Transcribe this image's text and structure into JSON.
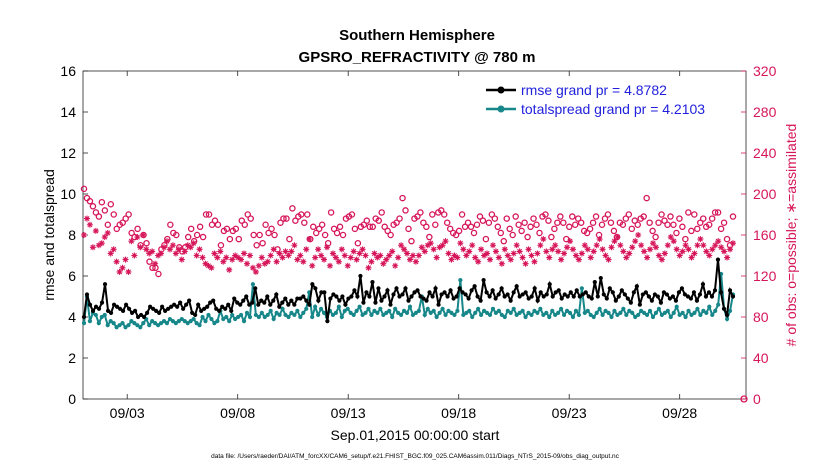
{
  "chart_data": {
    "type": "line",
    "title": "Southern Hemisphere",
    "subtitle": "GPSRO_REFRACTIVITY @ 780 m",
    "xlabel": "Sep.01,2015 00:00:00 start",
    "ylabel_left": "rmse and totalspread",
    "ylabel_right": "# of obs: o=possible; ∗=assimilated",
    "footnote": "data file: /Users/raeder/DAI/ATM_forcXX/CAM6_setup/f.e21.FHIST_BGC.f09_025.CAM6assim.011/Diags_NTrS_2015-09/obs_diag_output.nc",
    "x_tick_labels": [
      "09/03",
      "09/08",
      "09/13",
      "09/18",
      "09/23",
      "09/28"
    ],
    "x_tick_days": [
      3,
      8,
      13,
      18,
      23,
      28
    ],
    "x_range_days": [
      1,
      31
    ],
    "y_left_range": [
      0,
      16
    ],
    "y_left_ticks": [
      "0",
      "2",
      "4",
      "6",
      "8",
      "10",
      "12",
      "14",
      "16"
    ],
    "y_right_range": [
      0,
      320
    ],
    "y_right_ticks": [
      "0",
      "40",
      "80",
      "120",
      "160",
      "200",
      "240",
      "280",
      "320"
    ],
    "legend_location": "top-right",
    "colors": {
      "rmse": "#000000",
      "spread": "#17878a",
      "obs": "#d6165a",
      "legend_text": "#1f1fdc"
    },
    "series": [
      {
        "name": "rmse grand pr = 4.8782",
        "axis": "left",
        "values": [
          4.0,
          5.1,
          4.6,
          4.3,
          4.5,
          4.4,
          4.7,
          5.6,
          4.3,
          4.2,
          4.6,
          4.5,
          4.4,
          4.3,
          4.6,
          4.4,
          4.2,
          4.3,
          4.0,
          4.1,
          4.0,
          4.2,
          4.5,
          4.4,
          4.3,
          4.2,
          4.5,
          4.3,
          4.4,
          4.5,
          4.6,
          4.5,
          4.7,
          4.4,
          4.6,
          4.8,
          4.2,
          4.1,
          4.6,
          4.3,
          4.4,
          4.5,
          4.7,
          4.8,
          4.4,
          4.3,
          4.5,
          4.4,
          4.6,
          4.3,
          4.9,
          4.7,
          4.6,
          4.8,
          5.0,
          4.6,
          4.7,
          5.4,
          4.6,
          4.8,
          4.7,
          5.0,
          4.6,
          4.8,
          5.1,
          4.5,
          4.7,
          4.9,
          4.6,
          4.8,
          4.6,
          4.9,
          4.9,
          5.0,
          4.8,
          4.6,
          5.6,
          5.4,
          4.8,
          5.2,
          5.2,
          3.8,
          4.9,
          5.1,
          5.0,
          4.8,
          5.0,
          4.6,
          4.9,
          5.0,
          5.3,
          5.0,
          6.0,
          4.7,
          5.2,
          5.0,
          5.7,
          4.7,
          5.4,
          4.8,
          5.0,
          5.3,
          4.6,
          5.1,
          5.4,
          5.0,
          5.1,
          5.4,
          4.8,
          5.0,
          5.2,
          5.3,
          5.0,
          4.9,
          4.8,
          5.2,
          5.0,
          5.4,
          4.6,
          5.1,
          5.2,
          5.0,
          5.3,
          4.9,
          5.0,
          5.4,
          5.2,
          5.1,
          4.9,
          5.3,
          5.5,
          5.0,
          4.8,
          5.8,
          5.2,
          5.0,
          5.3,
          4.9,
          5.1,
          5.4,
          5.0,
          5.1,
          4.8,
          5.2,
          5.5,
          5.0,
          5.1,
          5.2,
          4.9,
          5.0,
          5.4,
          4.8,
          5.2,
          5.0,
          5.1,
          5.6,
          5.0,
          5.2,
          5.3,
          4.9,
          5.1,
          5.0,
          5.2,
          5.0,
          5.3,
          5.0,
          5.1,
          5.2,
          5.0,
          4.9,
          5.7,
          5.0,
          5.9,
          5.1,
          4.9,
          5.4,
          5.2,
          4.8,
          5.0,
          5.3,
          5.1,
          4.9,
          4.7,
          5.2,
          5.5,
          4.6,
          5.1,
          5.2,
          5.0,
          4.8,
          5.1,
          5.0,
          4.7,
          5.2,
          5.1,
          4.9,
          5.0,
          4.8,
          5.2,
          5.4,
          5.1,
          5.0,
          4.9,
          5.2,
          4.8,
          5.1,
          5.6,
          5.0,
          5.2,
          5.0,
          5.3,
          6.8,
          5.2,
          4.4,
          4.1,
          5.3,
          5.0
        ]
      },
      {
        "name": "totalspread grand pr = 4.2103",
        "axis": "left",
        "values": [
          3.7,
          5.0,
          3.8,
          4.2,
          4.1,
          3.7,
          4.0,
          4.1,
          3.6,
          3.8,
          3.7,
          3.5,
          3.6,
          3.7,
          3.5,
          3.6,
          3.8,
          3.7,
          3.6,
          3.5,
          3.7,
          3.9,
          3.6,
          3.8,
          3.7,
          3.6,
          3.7,
          3.8,
          3.7,
          3.9,
          3.8,
          3.7,
          3.8,
          3.9,
          3.8,
          3.7,
          3.8,
          3.9,
          3.7,
          3.6,
          4.0,
          3.8,
          4.1,
          3.9,
          3.7,
          3.8,
          4.3,
          3.9,
          4.0,
          3.8,
          4.1,
          3.9,
          4.0,
          4.1,
          3.8,
          4.2,
          4.0,
          5.6,
          4.1,
          4.0,
          4.2,
          4.0,
          4.1,
          4.3,
          3.9,
          4.2,
          4.1,
          4.4,
          4.1,
          4.0,
          4.2,
          4.1,
          4.3,
          4.0,
          4.2,
          4.4,
          5.2,
          4.0,
          4.5,
          4.1,
          4.4,
          4.2,
          4.0,
          4.3,
          4.1,
          4.2,
          4.5,
          4.0,
          4.3,
          4.4,
          4.2,
          4.1,
          4.3,
          4.5,
          4.1,
          4.2,
          4.4,
          4.1,
          4.3,
          4.2,
          4.4,
          4.1,
          4.2,
          4.3,
          4.0,
          4.4,
          4.2,
          4.1,
          4.3,
          4.2,
          4.5,
          4.1,
          4.2,
          4.3,
          5.0,
          4.1,
          4.4,
          4.2,
          4.3,
          4.0,
          4.2,
          4.4,
          4.1,
          4.3,
          4.2,
          4.1,
          4.3,
          5.8,
          4.1,
          4.2,
          4.3,
          4.0,
          4.2,
          4.4,
          4.1,
          4.3,
          4.2,
          4.1,
          4.4,
          4.2,
          4.3,
          4.1,
          4.0,
          4.3,
          4.2,
          4.4,
          4.1,
          4.2,
          4.3,
          4.0,
          4.2,
          4.1,
          4.3,
          4.2,
          4.4,
          4.1,
          4.2,
          4.0,
          4.3,
          4.1,
          4.2,
          4.4,
          4.1,
          4.3,
          4.2,
          4.0,
          4.3,
          4.1,
          5.4,
          4.2,
          4.3,
          4.1,
          4.0,
          4.2,
          4.4,
          4.1,
          4.3,
          4.2,
          4.0,
          4.3,
          4.1,
          4.2,
          4.4,
          4.1,
          4.3,
          4.2,
          4.0,
          4.1,
          4.3,
          4.2,
          4.1,
          4.3,
          4.0,
          4.2,
          4.4,
          4.1,
          4.2,
          4.3,
          4.0,
          4.2,
          4.5,
          4.1,
          4.2,
          4.0,
          4.3,
          4.1,
          4.2,
          4.4,
          4.1,
          4.3,
          4.2,
          4.5,
          4.1,
          4.3,
          4.6,
          6.1,
          4.4,
          3.9,
          4.3,
          5.1
        ]
      },
      {
        "name": "obs possible",
        "axis": "right",
        "marker": "circle",
        "values": [
          205,
          196,
          193,
          188,
          182,
          178,
          192,
          184,
          170,
          190,
          180,
          166,
          170,
          172,
          176,
          180,
          162,
          158,
          166,
          150,
          160,
          152,
          134,
          128,
          128,
          122,
          146,
          150,
          156,
          170,
          162,
          160,
          148,
          144,
          148,
          158,
          166,
          154,
          160,
          168,
          158,
          180,
          180,
          170,
          174,
          170,
          150,
          164,
          166,
          156,
          164,
          166,
          156,
          174,
          170,
          180,
          176,
          160,
          150,
          160,
          152,
          170,
          162,
          166,
          160,
          146,
          172,
          176,
          176,
          156,
          186,
          174,
          178,
          180,
          172,
          180,
          156,
          168,
          162,
          166,
          170,
          160,
          152,
          182,
          166,
          162,
          168,
          160,
          176,
          178,
          180,
          166,
          152,
          168,
          170,
          174,
          168,
          168,
          176,
          174,
          182,
          168,
          164,
          160,
          170,
          172,
          176,
          196,
          184,
          166,
          154,
          176,
          178,
          182,
          172,
          168,
          158,
          180,
          170,
          182,
          184,
          180,
          172,
          166,
          162,
          160,
          164,
          180,
          168,
          172,
          168,
          162,
          170,
          178,
          174,
          156,
          172,
          180,
          176,
          168,
          162,
          154,
          176,
          166,
          160,
          178,
          170,
          164,
          172,
          158,
          168,
          176,
          170,
          162,
          178,
          180,
          174,
          158,
          166,
          172,
          178,
          172,
          156,
          168,
          178,
          170,
          176,
          172,
          164,
          162,
          166,
          172,
          178,
          160,
          170,
          176,
          180,
          172,
          164,
          158,
          172,
          170,
          176,
          180,
          166,
          174,
          170,
          176,
          178,
          196,
          172,
          164,
          158,
          172,
          180,
          174,
          170,
          178,
          170,
          162,
          176,
          168,
          156,
          182,
          164,
          180,
          166,
          172,
          176,
          168,
          170,
          176,
          182,
          182,
          166,
          172,
          156,
          150,
          178
        ]
      },
      {
        "name": "obs assimilated",
        "axis": "right",
        "marker": "asterisk",
        "values": [
          160,
          176,
          170,
          148,
          164,
          150,
          152,
          158,
          162,
          142,
          146,
          134,
          124,
          128,
          136,
          124,
          154,
          140,
          158,
          148,
          160,
          146,
          142,
          144,
          132,
          140,
          142,
          148,
          154,
          146,
          150,
          142,
          146,
          136,
          144,
          150,
          148,
          152,
          140,
          146,
          138,
          132,
          130,
          128,
          142,
          138,
          144,
          134,
          138,
          126,
          136,
          140,
          138,
          136,
          142,
          132,
          140,
          128,
          124,
          130,
          138,
          132,
          134,
          140,
          146,
          134,
          142,
          138,
          144,
          140,
          144,
          150,
          136,
          140,
          134,
          146,
          156,
          130,
          138,
          146,
          140,
          136,
          148,
          130,
          142,
          138,
          134,
          146,
          140,
          130,
          138,
          144,
          136,
          142,
          146,
          140,
          128,
          134,
          142,
          138,
          140,
          132,
          136,
          140,
          144,
          130,
          138,
          150,
          146,
          142,
          136,
          140,
          134,
          140,
          148,
          144,
          150,
          152,
          146,
          138,
          148,
          150,
          154,
          142,
          136,
          140,
          138,
          152,
          146,
          140,
          144,
          150,
          138,
          134,
          146,
          140,
          142,
          136,
          150,
          144,
          138,
          132,
          146,
          140,
          136,
          142,
          150,
          144,
          138,
          132,
          146,
          140,
          134,
          142,
          150,
          156,
          144,
          138,
          146,
          150,
          144,
          136,
          142,
          148,
          154,
          146,
          140,
          136,
          142,
          150,
          146,
          138,
          144,
          150,
          156,
          146,
          140,
          136,
          148,
          154,
          158,
          150,
          144,
          138,
          142,
          148,
          154,
          160,
          150,
          144,
          138,
          146,
          152,
          148,
          140,
          136,
          142,
          150,
          158,
          154,
          146,
          140,
          144,
          150,
          146,
          138,
          142,
          150,
          156,
          150,
          144,
          140,
          146,
          150,
          154,
          148,
          144,
          138,
          146,
          152
        ]
      }
    ]
  }
}
